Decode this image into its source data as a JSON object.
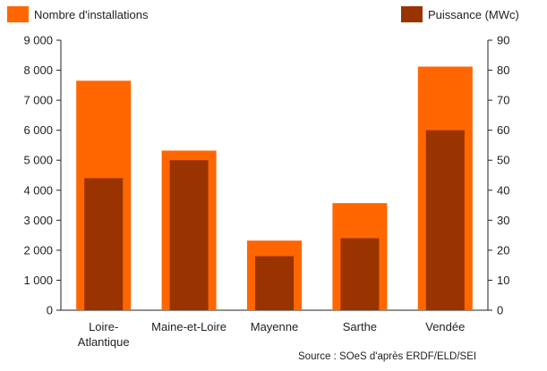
{
  "chart_data": {
    "type": "bar",
    "categories": [
      [
        "Loire-",
        "Atlantique"
      ],
      [
        "Maine-et-Loire"
      ],
      [
        "Mayenne"
      ],
      [
        "Sarthe"
      ],
      [
        "Vendée"
      ]
    ],
    "series": [
      {
        "name": "Nombre d'installations",
        "axis": "left",
        "color": "#ff6600",
        "values": [
          7650,
          5320,
          2320,
          3570,
          8120
        ]
      },
      {
        "name": "Puissance (MWc)",
        "axis": "right",
        "color": "#993300",
        "values": [
          44,
          50,
          18,
          24,
          60
        ]
      }
    ],
    "y_left": {
      "min": 0,
      "max": 9000,
      "ticks": [
        "0",
        "1 000",
        "2 000",
        "3 000",
        "4 000",
        "5 000",
        "6 000",
        "7 000",
        "8 000",
        "9 000"
      ]
    },
    "y_right": {
      "min": 0,
      "max": 90,
      "ticks": [
        "0",
        "10",
        "20",
        "30",
        "40",
        "50",
        "60",
        "70",
        "80",
        "90"
      ]
    },
    "legend": {
      "left": {
        "label": "Nombre d'installations",
        "color": "#ff6600"
      },
      "right": {
        "label": "Puissance (MWc)",
        "color": "#993300"
      }
    },
    "grid": false,
    "source": "Source : SOeS d'après ERDF/ELD/SEI"
  }
}
